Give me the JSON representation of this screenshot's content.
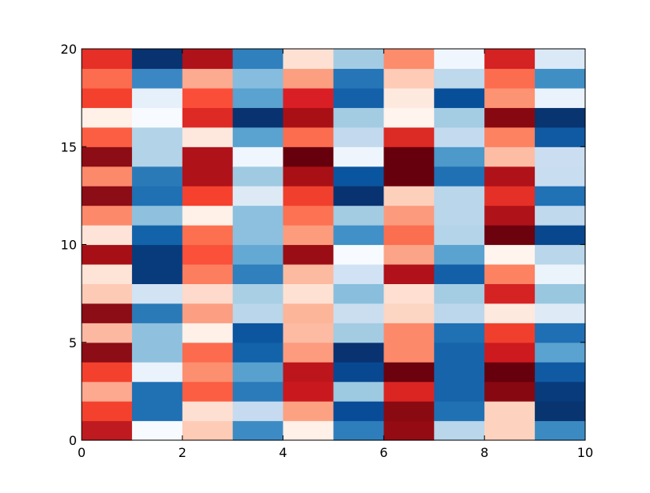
{
  "chart_data": {
    "type": "heatmap",
    "title": "",
    "xlabel": "",
    "ylabel": "",
    "xlim": [
      0,
      10
    ],
    "ylim": [
      0,
      20
    ],
    "x_ticks": [
      0,
      2,
      4,
      6,
      8,
      10
    ],
    "y_ticks": [
      0,
      5,
      10,
      15,
      20
    ],
    "x_tick_labels": [
      "0",
      "2",
      "4",
      "6",
      "8",
      "10"
    ],
    "y_tick_labels": [
      "0",
      "5",
      "10",
      "15",
      "20"
    ],
    "cell_width": 1,
    "cell_height": 1,
    "colormap": "RdBu (columns alternate red / blue)",
    "column_colors": [
      [
        "#be1a1f",
        "#f3412e",
        "#fca98f",
        "#f3412e",
        "#8c0d15",
        "#fcb8a0",
        "#8c0d15",
        "#fdcab5",
        "#fee3d7",
        "#a50f15",
        "#fee4d8",
        "#fc8a6a",
        "#8c0d15",
        "#fc8a6a",
        "#8c0d15",
        "#fb5e42",
        "#fff0e8",
        "#f3412e",
        "#fc6d50",
        "#e52f27"
      ],
      [
        "#f7fbff",
        "#2070b4",
        "#2070b4",
        "#eaf2fb",
        "#8fc1de",
        "#8fc1de",
        "#2a7ab8",
        "#d2e3f3",
        "#083b7c",
        "#083b7c",
        "#1363aa",
        "#8fc1de",
        "#2070b4",
        "#2a7ab8",
        "#b3d3e8",
        "#b3d3e8",
        "#f7fbff",
        "#e6f0fa",
        "#3b87c3",
        "#083370"
      ],
      [
        "#fdcbb6",
        "#fee0d2",
        "#fb5e42",
        "#fc8f6f",
        "#fc6b4e",
        "#fff0e8",
        "#fc9e81",
        "#fddacb",
        "#fc7e5f",
        "#fb503a",
        "#fc7050",
        "#fff0e8",
        "#f5412e",
        "#b0121a",
        "#b0121a",
        "#fee8dd",
        "#dd2a25",
        "#fb4e38",
        "#fcaa90",
        "#b0121a"
      ],
      [
        "#3d8bc4",
        "#c6dbef",
        "#2b7bba",
        "#58a1cf",
        "#1363aa",
        "#0c56a0",
        "#bad6ea",
        "#a9cfe5",
        "#2f80bd",
        "#64a9d3",
        "#8cc0de",
        "#8cc0de",
        "#ddeaf6",
        "#9fcae1",
        "#f0f6fd",
        "#5aa2cf",
        "#083370",
        "#5aa2cf",
        "#86bcdd",
        "#2f80bd"
      ],
      [
        "#fff0e8",
        "#fca283",
        "#c9191e",
        "#bc161c",
        "#fc9b7e",
        "#fcbba2",
        "#fcb599",
        "#fee1d3",
        "#fcbaa0",
        "#9b0d14",
        "#fc9c7d",
        "#fc7252",
        "#f0402d",
        "#a91016",
        "#67000d",
        "#fc6d50",
        "#a91016",
        "#d91f25",
        "#fc9e80",
        "#fee1d3"
      ],
      [
        "#2f7ebc",
        "#084c97",
        "#9dcae1",
        "#084891",
        "#083370",
        "#a3cce3",
        "#cbdeef",
        "#89bfdd",
        "#d0e2f3",
        "#f7fbff",
        "#4190c8",
        "#a3cce3",
        "#083370",
        "#0a55a0",
        "#eef5fc",
        "#c3daee",
        "#a3cce3",
        "#1561a9",
        "#2575b7",
        "#a3cce3"
      ],
      [
        "#940b13",
        "#8a0a12",
        "#da2523",
        "#6b020e",
        "#fc8a6a",
        "#fc8a6a",
        "#fdd5c3",
        "#fedfd1",
        "#b0111a",
        "#fca487",
        "#fb6e50",
        "#fc9a7d",
        "#fdd0bc",
        "#67000d",
        "#67000d",
        "#dc2a25",
        "#fff4ee",
        "#fee9df",
        "#fdcbb6",
        "#fc8c6c"
      ],
      [
        "#b9d6ea",
        "#2070b4",
        "#1764ab",
        "#1764ab",
        "#1764ab",
        "#2070b4",
        "#bcd7eb",
        "#a4cce3",
        "#1460a8",
        "#5aa2cf",
        "#b4d4e9",
        "#b9d6ea",
        "#b9d6ea",
        "#2070b4",
        "#4c99ca",
        "#c4daee",
        "#a4cce3",
        "#084f99",
        "#bed8ec",
        "#f0f6fd"
      ],
      [
        "#fdd3c0",
        "#fdd3c0",
        "#880811",
        "#67000d",
        "#cd1a1e",
        "#f0402d",
        "#fee9df",
        "#d52222",
        "#fc8262",
        "#fff4ee",
        "#6b020e",
        "#b0121a",
        "#e43027",
        "#b0121a",
        "#fdbda5",
        "#fc8262",
        "#880811",
        "#fc9373",
        "#fc6d50",
        "#d52222"
      ],
      [
        "#3b8bc2",
        "#083470",
        "#083b7c",
        "#0f5aa3",
        "#5aa2cf",
        "#1f6fb4",
        "#deebf7",
        "#99c7e0",
        "#ebf3fb",
        "#b9d6ea",
        "#08478d",
        "#c1d9ed",
        "#2171b5",
        "#c9ddf0",
        "#cbdef1",
        "#0f5aa3",
        "#083470",
        "#eaf2fb",
        "#3f8fc5",
        "#dbe9f6"
      ]
    ]
  }
}
